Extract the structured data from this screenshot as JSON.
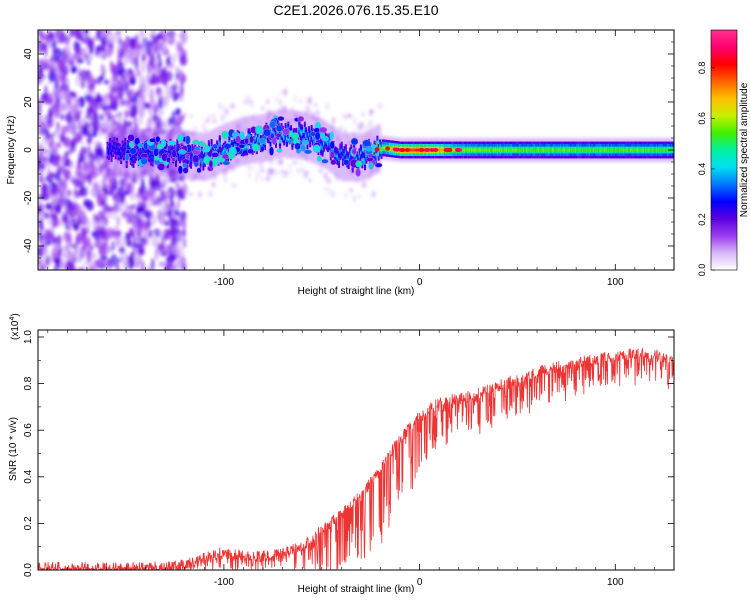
{
  "title": "C2E1.2026.076.15.35.E10",
  "chart_data": [
    {
      "type": "heatmap",
      "xlabel": "Height of straight line (km)",
      "ylabel": "Frequency (Hz)",
      "xlim": [
        -195,
        130
      ],
      "ylim": [
        -50,
        50
      ],
      "xticks": [
        -100,
        0,
        100
      ],
      "yticks": [
        -40,
        -20,
        0,
        20,
        40
      ],
      "colorbar": {
        "label": "Normalized spectral amplitude",
        "range": [
          0,
          0.95
        ],
        "ticks": [
          "0.0",
          "0.2",
          "0.4",
          "0.6",
          "0.8"
        ],
        "colors": [
          "#ffffff",
          "#d8b8f8",
          "#9a3bf0",
          "#5a00e0",
          "#0000ff",
          "#0078ff",
          "#00e0f0",
          "#00f0a0",
          "#40f000",
          "#c8f000",
          "#ffc000",
          "#ff6000",
          "#ff0000",
          "#ff0070",
          "#ff3090"
        ]
      },
      "ridge": [
        {
          "x": -160,
          "f": -1,
          "a": 0.3
        },
        {
          "x": -140,
          "f": -1,
          "a": 0.32
        },
        {
          "x": -120,
          "f": -2,
          "a": 0.35
        },
        {
          "x": -110,
          "f": -3,
          "a": 0.38
        },
        {
          "x": -100,
          "f": 1,
          "a": 0.42
        },
        {
          "x": -90,
          "f": 4,
          "a": 0.45
        },
        {
          "x": -80,
          "f": 5,
          "a": 0.45
        },
        {
          "x": -70,
          "f": 7,
          "a": 0.45
        },
        {
          "x": -60,
          "f": 6,
          "a": 0.42
        },
        {
          "x": -50,
          "f": 3,
          "a": 0.4
        },
        {
          "x": -40,
          "f": -3,
          "a": 0.38
        },
        {
          "x": -30,
          "f": -3,
          "a": 0.4
        },
        {
          "x": -20,
          "f": 1,
          "a": 0.6
        },
        {
          "x": -10,
          "f": 0,
          "a": 0.8
        },
        {
          "x": 0,
          "f": 0,
          "a": 0.85
        },
        {
          "x": 10,
          "f": 0,
          "a": 0.75
        },
        {
          "x": 20,
          "f": 0,
          "a": 0.6
        },
        {
          "x": 60,
          "f": 0,
          "a": 0.58
        },
        {
          "x": 100,
          "f": 0,
          "a": 0.58
        },
        {
          "x": 130,
          "f": 0,
          "a": 0.56
        }
      ]
    },
    {
      "type": "line",
      "xlabel": "Height of straight line (km)",
      "ylabel": "SNR (10 * v/v)",
      "scale_label": "(x10",
      "scale_exp": "4",
      "scale_close": ")",
      "xlim": [
        -195,
        130
      ],
      "ylim": [
        0,
        1.03
      ],
      "xticks": [
        -100,
        0,
        100
      ],
      "yticks": [
        "0.0",
        "0.2",
        "0.4",
        "0.6",
        "0.8",
        "1.0"
      ],
      "color": "#ee3333",
      "envelope": {
        "x": [
          -195,
          -150,
          -125,
          -110,
          -100,
          -90,
          -80,
          -70,
          -60,
          -50,
          -40,
          -30,
          -20,
          -10,
          0,
          10,
          20,
          30,
          40,
          50,
          60,
          70,
          80,
          90,
          100,
          110,
          120,
          130
        ],
        "base": [
          0.01,
          0.01,
          0.015,
          0.05,
          0.08,
          0.06,
          0.06,
          0.07,
          0.1,
          0.17,
          0.24,
          0.32,
          0.44,
          0.56,
          0.66,
          0.72,
          0.74,
          0.76,
          0.79,
          0.82,
          0.85,
          0.87,
          0.89,
          0.91,
          0.92,
          0.93,
          0.92,
          0.9
        ],
        "dip": [
          0.01,
          0.015,
          0.02,
          0.06,
          0.08,
          0.07,
          0.07,
          0.08,
          0.12,
          0.2,
          0.25,
          0.3,
          0.3,
          0.25,
          0.22,
          0.18,
          0.15,
          0.15,
          0.14,
          0.14,
          0.14,
          0.13,
          0.13,
          0.13,
          0.12,
          0.12,
          0.12,
          0.12
        ]
      }
    }
  ]
}
